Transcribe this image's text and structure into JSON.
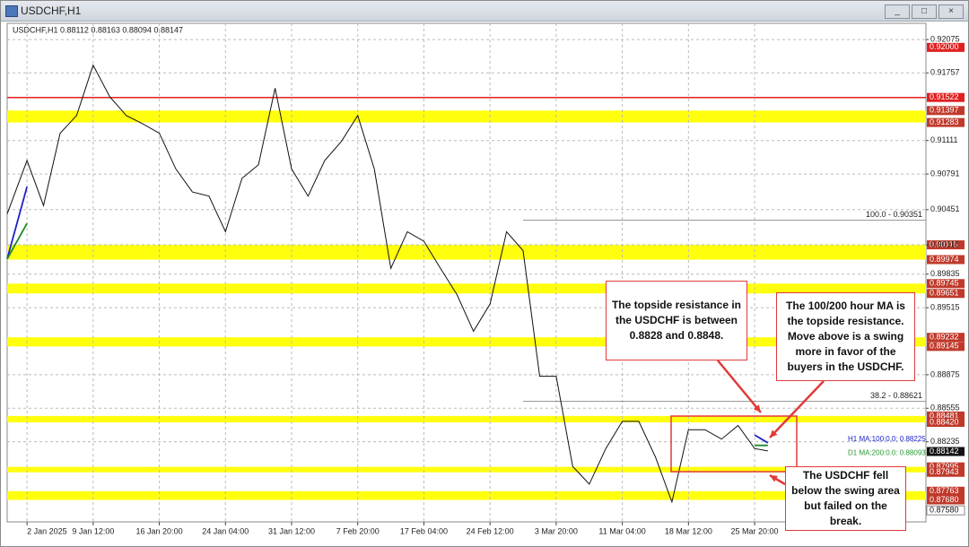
{
  "window_title": "USDCHF,H1",
  "chart_data": {
    "type": "line",
    "header": "USDCHF,H1  0.88112 0.88163 0.88094 0.88147",
    "xlim": [
      -0.3,
      13.59
    ],
    "ylim": [
      0.8747,
      0.9223
    ],
    "grid": true,
    "xticks": [
      {
        "value": 0,
        "label": "2 Jan 2025"
      },
      {
        "value": 1,
        "label": "9 Jan 12:00"
      },
      {
        "value": 2,
        "label": "16 Jan 20:00"
      },
      {
        "value": 3,
        "label": "24 Jan 04:00"
      },
      {
        "value": 4,
        "label": "31 Jan 12:00"
      },
      {
        "value": 5,
        "label": "7 Feb 20:00"
      },
      {
        "value": 6,
        "label": "17 Feb 04:00"
      },
      {
        "value": 7,
        "label": "24 Feb 12:00"
      },
      {
        "value": 8,
        "label": "3 Mar 20:00"
      },
      {
        "value": 9,
        "label": "11 Mar 04:00"
      },
      {
        "value": 10,
        "label": "18 Mar 12:00"
      },
      {
        "value": 11,
        "label": "25 Mar 20:00"
      }
    ],
    "yticks": [
      0.92075,
      0.91757,
      0.91111,
      0.90791,
      0.90451,
      0.90115,
      0.89835,
      0.89515,
      0.88875,
      0.88555,
      0.88235
    ],
    "x": [
      -0.3,
      0,
      0.25,
      0.5,
      0.75,
      1,
      1.25,
      1.5,
      1.75,
      2,
      2.25,
      2.5,
      2.75,
      3,
      3.25,
      3.5,
      3.75,
      4,
      4.25,
      4.5,
      4.75,
      5,
      5.25,
      5.5,
      5.75,
      6,
      6.25,
      6.5,
      6.75,
      7,
      7.25,
      7.5,
      7.75,
      8,
      8.25,
      8.5,
      8.75,
      9,
      9.25,
      9.5,
      9.75,
      10,
      10.25,
      10.5,
      10.75,
      11,
      11.2
    ],
    "series": [
      {
        "color": "#111111",
        "width": 1,
        "values": [
          0.9041,
          0.9092,
          0.9049,
          0.9118,
          0.9135,
          0.9183,
          0.9153,
          0.9135,
          0.9127,
          0.9118,
          0.9084,
          0.9062,
          0.9058,
          0.9024,
          0.9075,
          0.9088,
          0.9161,
          0.9084,
          0.9058,
          0.9092,
          0.911,
          0.9135,
          0.9084,
          0.8989,
          0.9024,
          0.9015,
          0.8989,
          0.8964,
          0.8929,
          0.8955,
          0.9024,
          0.9006,
          0.8886,
          0.8886,
          0.88,
          0.8783,
          0.8817,
          0.8843,
          0.8843,
          0.8809,
          0.8766,
          0.8835,
          0.8835,
          0.8826,
          0.8839,
          0.8817,
          0.88147
        ]
      },
      {
        "name": "H1 MA:100:0.0: 0.88225",
        "color": "#1c22c8",
        "width": 1.8,
        "values": [
          0.8998,
          0.9067,
          null,
          0.9101,
          null,
          0.914,
          null,
          0.9144,
          null,
          0.9127,
          null,
          0.9084,
          null,
          0.9062,
          null,
          0.9075,
          null,
          0.9122,
          null,
          0.9075,
          null,
          0.9075,
          null,
          0.911,
          null,
          0.9032,
          null,
          0.8989,
          null,
          0.8959,
          null,
          0.8981,
          null,
          0.8912,
          null,
          0.8843,
          null,
          0.8822,
          null,
          0.8835,
          null,
          0.8805,
          null,
          0.8817,
          null,
          0.883,
          0.88225
        ]
      },
      {
        "color": "#1f8a2a",
        "width": 1.8,
        "values": [
          0.8998,
          0.9032,
          null,
          0.9067,
          null,
          0.9118,
          null,
          0.9135,
          null,
          0.9127,
          null,
          0.9105,
          null,
          0.9079,
          null,
          0.9062,
          null,
          0.9075,
          null,
          0.9079,
          null,
          0.9088,
          null,
          0.9079,
          null,
          0.9067,
          null,
          0.9032,
          null,
          0.8994,
          null,
          0.8985,
          null,
          0.8938,
          null,
          0.8886,
          null,
          0.8843,
          null,
          0.8817,
          null,
          0.8809,
          null,
          0.8819,
          null,
          0.882,
          0.882
        ]
      },
      {
        "name": "D1 MA:200:0.0: 0.88093",
        "color": "#2a9a30",
        "width": 1.3,
        "values": [
          0.8826,
          null,
          null,
          null,
          null,
          null,
          null,
          null,
          null,
          0.8835,
          null,
          null,
          null,
          null,
          null,
          null,
          null,
          null,
          null,
          null,
          null,
          0.883,
          null,
          null,
          null,
          null,
          null,
          null,
          null,
          null,
          null,
          null,
          null,
          0.8824,
          null,
          null,
          null,
          null,
          null,
          null,
          null,
          null,
          null,
          null,
          null,
          null,
          0.88093
        ]
      }
    ],
    "zones": [
      {
        "low": {
          "value": 0.91283,
          "label": "0.91283"
        },
        "high": {
          "value": 0.91397,
          "label": "0.91397"
        }
      },
      {
        "low": {
          "value": 0.89974,
          "label": "0.89974"
        },
        "high": {
          "value": 0.90115,
          "label": "0.90115"
        }
      },
      {
        "low": {
          "value": 0.89651,
          "label": "0.89651"
        },
        "high": {
          "value": 0.89745,
          "label": "0.89745"
        }
      },
      {
        "low": {
          "value": 0.89145,
          "label": "0.89145"
        },
        "high": {
          "value": 0.89232,
          "label": "0.89232"
        }
      },
      {
        "low": {
          "value": 0.8842,
          "label": "0.88420"
        },
        "high": {
          "value": 0.88481,
          "label": "0.88481"
        }
      },
      {
        "low": {
          "value": 0.87943,
          "label": "0.87943"
        },
        "high": {
          "value": 0.87995,
          "label": "0.87995"
        }
      },
      {
        "low": {
          "value": 0.8768,
          "label": "0.87680"
        },
        "high": {
          "value": 0.87763,
          "label": "0.87763"
        }
      }
    ],
    "zone_color": "#ffff00",
    "levels": [
      {
        "value": 0.92,
        "label": "0.92000",
        "color": "#e02020",
        "line": false
      },
      {
        "value": 0.91522,
        "label": "0.91522",
        "color": "#e02020",
        "line": true
      },
      {
        "value": 0.88142,
        "label": "0.88142",
        "color": "#111111",
        "line": false
      },
      {
        "value": 0.8758,
        "label": "0.87580",
        "color": "#ffffff",
        "line": false
      }
    ],
    "fibs": [
      {
        "label": "100.0 - 0.90351",
        "value": 0.90351,
        "from": 7.5
      },
      {
        "label": "38.2 - 0.88621",
        "value": 0.88621,
        "from": 7.5
      }
    ],
    "annotations": [
      "The topside resistance in the USDCHF is between 0.8828 and 0.8848.",
      "The 100/200 hour MA is the topside resistance. Move above is a swing more in favor of the buyers in the USDCHF.",
      "The USDCHF fell below the swing area but failed on the break."
    ]
  }
}
